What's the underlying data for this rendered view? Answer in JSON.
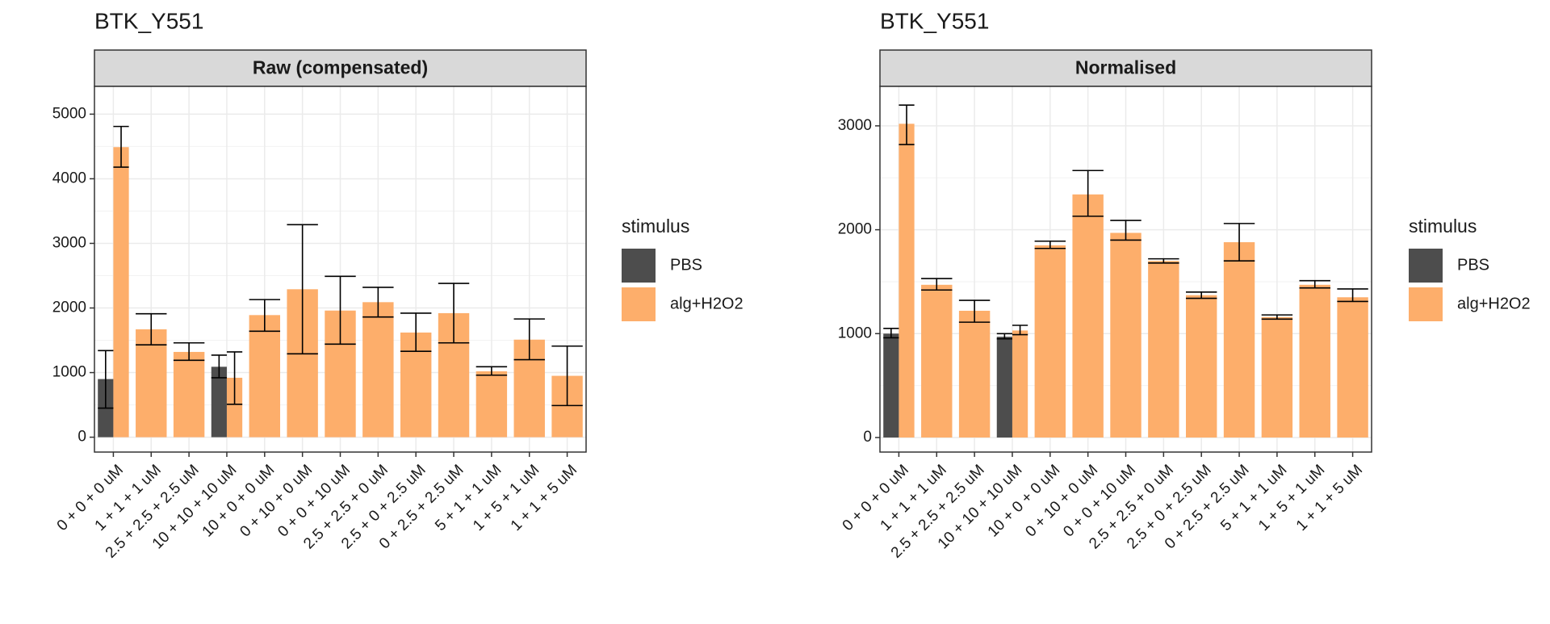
{
  "colors": {
    "pbs": "#4D4D4D",
    "alg_h2o2": "#FDAE6B",
    "strip_fill": "#D9D9D9",
    "grid": "#EBEBEB",
    "text": "#1A1A1A"
  },
  "legend": {
    "title": "stimulus",
    "items": [
      {
        "key": "pbs",
        "label": "PBS"
      },
      {
        "key": "alg_h2o2",
        "label": "alg+H2O2"
      }
    ]
  },
  "chart_data": [
    {
      "type": "bar",
      "title": "BTK_Y551",
      "facet_label": "Raw (compensated)",
      "xlabel": "",
      "ylabel": "",
      "ylim": [
        -230,
        5430
      ],
      "yticks": [
        0,
        1000,
        2000,
        3000,
        4000,
        5000
      ],
      "categories": [
        "0 + 0 + 0 uM",
        "1 + 1 + 1 uM",
        "2.5 + 2.5 + 2.5 uM",
        "10 + 10 + 10 uM",
        "10 + 0 + 0 uM",
        "0 + 10 + 0 uM",
        "0 + 0 + 10 uM",
        "2.5 + 2.5 + 0 uM",
        "2.5 + 0 + 2.5 uM",
        "0 + 2.5 + 2.5 uM",
        "5 + 1 + 1 uM",
        "1 + 5 + 1 uM",
        "1 + 1 + 5 uM"
      ],
      "grid": true,
      "legend_position": "right",
      "series": [
        {
          "name": "PBS",
          "key": "pbs",
          "values": [
            900,
            null,
            null,
            1090,
            null,
            null,
            null,
            null,
            null,
            null,
            null,
            null,
            null
          ],
          "err_low": [
            450,
            null,
            null,
            920,
            null,
            null,
            null,
            null,
            null,
            null,
            null,
            null,
            null
          ],
          "err_high": [
            1340,
            null,
            null,
            1270,
            null,
            null,
            null,
            null,
            null,
            null,
            null,
            null,
            null
          ]
        },
        {
          "name": "alg+H2O2",
          "key": "alg_h2o2",
          "values": [
            4490,
            1670,
            1320,
            920,
            1890,
            2290,
            1960,
            2090,
            1620,
            1920,
            1020,
            1510,
            950
          ],
          "err_low": [
            4180,
            1430,
            1190,
            510,
            1640,
            1290,
            1440,
            1860,
            1330,
            1460,
            960,
            1200,
            490
          ],
          "err_high": [
            4810,
            1910,
            1460,
            1320,
            2130,
            3290,
            2490,
            2320,
            1920,
            2380,
            1090,
            1830,
            1410
          ]
        }
      ]
    },
    {
      "type": "bar",
      "title": "BTK_Y551",
      "facet_label": "Normalised",
      "xlabel": "",
      "ylabel": "",
      "ylim": [
        -140,
        3380
      ],
      "yticks": [
        0,
        1000,
        2000,
        3000
      ],
      "categories": [
        "0 + 0 + 0 uM",
        "1 + 1 + 1 uM",
        "2.5 + 2.5 + 2.5 uM",
        "10 + 10 + 10 uM",
        "10 + 0 + 0 uM",
        "0 + 10 + 0 uM",
        "0 + 0 + 10 uM",
        "2.5 + 2.5 + 0 uM",
        "2.5 + 0 + 2.5 uM",
        "0 + 2.5 + 2.5 uM",
        "5 + 1 + 1 uM",
        "1 + 5 + 1 uM",
        "1 + 1 + 5 uM"
      ],
      "grid": true,
      "legend_position": "right",
      "series": [
        {
          "name": "PBS",
          "key": "pbs",
          "values": [
            1000,
            null,
            null,
            970,
            null,
            null,
            null,
            null,
            null,
            null,
            null,
            null,
            null
          ],
          "err_low": [
            960,
            null,
            null,
            950,
            null,
            null,
            null,
            null,
            null,
            null,
            null,
            null,
            null
          ],
          "err_high": [
            1050,
            null,
            null,
            1000,
            null,
            null,
            null,
            null,
            null,
            null,
            null,
            null,
            null
          ]
        },
        {
          "name": "alg+H2O2",
          "key": "alg_h2o2",
          "values": [
            3020,
            1470,
            1220,
            1030,
            1850,
            2340,
            1970,
            1700,
            1370,
            1880,
            1160,
            1470,
            1350
          ],
          "err_low": [
            2820,
            1420,
            1110,
            990,
            1820,
            2130,
            1900,
            1680,
            1340,
            1700,
            1140,
            1440,
            1310
          ],
          "err_high": [
            3200,
            1530,
            1320,
            1080,
            1890,
            2570,
            2090,
            1720,
            1400,
            2060,
            1180,
            1510,
            1430
          ]
        }
      ]
    }
  ]
}
